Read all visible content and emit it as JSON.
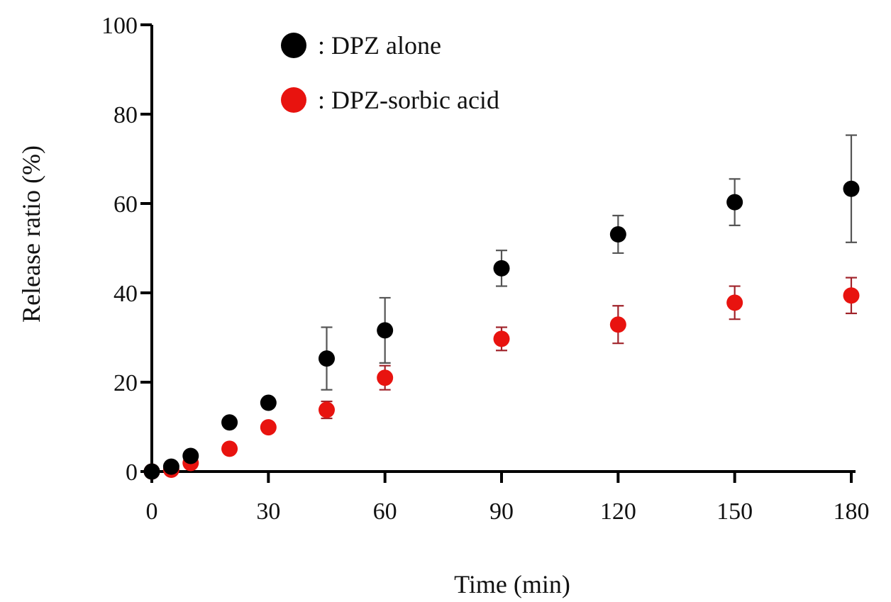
{
  "chart_data": {
    "type": "scatter",
    "title": "",
    "xlabel": "Time (min)",
    "ylabel": "Release ratio (%)",
    "xlim": [
      0,
      180
    ],
    "ylim": [
      0,
      100
    ],
    "xticks": [
      0,
      30,
      60,
      90,
      120,
      150,
      180
    ],
    "yticks": [
      0,
      20,
      40,
      60,
      80,
      100
    ],
    "grid": false,
    "legend_position": "top-center",
    "series": [
      {
        "name": "DPZ alone",
        "legend_label": ": DPZ alone",
        "color": "#000000",
        "error_color": "#555555",
        "x": [
          0,
          5,
          10,
          20,
          30,
          45,
          60,
          90,
          120,
          150,
          180
        ],
        "y": [
          0,
          1.1,
          3.5,
          11.0,
          15.4,
          25.3,
          31.6,
          45.5,
          53.1,
          60.3,
          63.3
        ],
        "error": [
          0,
          0,
          0,
          0,
          0,
          7.0,
          7.3,
          4.0,
          4.2,
          5.2,
          12.0
        ]
      },
      {
        "name": "DPZ-sorbic acid",
        "legend_label": ": DPZ-sorbic acid",
        "color": "#e8130f",
        "error_color": "#a0232a",
        "x": [
          0,
          5,
          10,
          20,
          30,
          45,
          60,
          90,
          120,
          150,
          180
        ],
        "y": [
          0,
          0.4,
          1.9,
          5.1,
          9.9,
          13.8,
          21.0,
          29.7,
          32.9,
          37.8,
          39.4
        ],
        "error": [
          0,
          0,
          0,
          0,
          0,
          1.9,
          2.7,
          2.6,
          4.2,
          3.7,
          4.0
        ]
      }
    ]
  }
}
